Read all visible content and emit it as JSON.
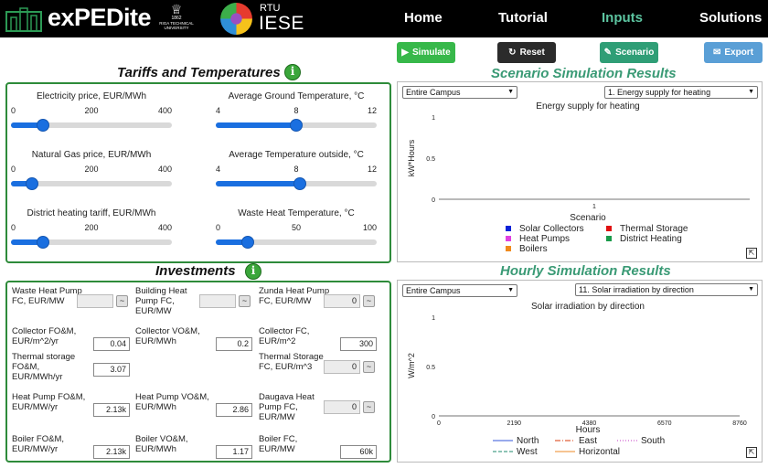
{
  "header": {
    "logo_text": "exPEDite",
    "rtu_logo_text": "RIGA TECHNICAL UNIVERSITY",
    "rtu_year": "1862",
    "iese_rtu": "RTU",
    "iese_name": "IESE",
    "nav": [
      "Home",
      "Tutorial",
      "Inputs",
      "Solutions"
    ],
    "active_nav": "Inputs"
  },
  "actions": {
    "simulate": "Simulate",
    "reset": "Reset",
    "scenario": "Scenario",
    "export": "Export",
    "colors": {
      "simulate": "#37b84a",
      "reset": "#2b2b2b",
      "scenario": "#2f9e76",
      "export": "#5a9fd6"
    }
  },
  "tariffs": {
    "title": "Tariffs and Temperatures",
    "sliders": [
      {
        "label": "Electricity price, EUR/MWh",
        "ticks": [
          "0",
          "200",
          "400"
        ],
        "fraction": 0.2
      },
      {
        "label": "Average Ground Temperature, °C",
        "ticks": [
          "4",
          "8",
          "12"
        ],
        "fraction": 0.5
      },
      {
        "label": "Natural Gas price, EUR/MWh",
        "ticks": [
          "0",
          "200",
          "400"
        ],
        "fraction": 0.13
      },
      {
        "label": "Average Temperature outside, °C",
        "ticks": [
          "4",
          "8",
          "12"
        ],
        "fraction": 0.52
      },
      {
        "label": "District heating tariff, EUR/MWh",
        "ticks": [
          "0",
          "200",
          "400"
        ],
        "fraction": 0.2
      },
      {
        "label": "Waste Heat Temperature, °C",
        "ticks": [
          "0",
          "50",
          "100"
        ],
        "fraction": 0.2
      }
    ]
  },
  "investments": {
    "title": "Investments",
    "fields": [
      {
        "label": "Waste Heat Pump FC, EUR/MW",
        "value": "",
        "disabled": true,
        "stepper": true
      },
      {
        "label": "Building Heat Pump FC, EUR/MW",
        "value": "",
        "disabled": true,
        "stepper": true
      },
      {
        "label": "Zunda Heat Pump FC, EUR/MW",
        "value": "0",
        "disabled": true,
        "stepper": true
      },
      {
        "label": "Collector FO&M, EUR/m^2/yr",
        "value": "0.04",
        "disabled": false,
        "stepper": false
      },
      {
        "label": "Collector VO&M, EUR/MWh",
        "value": "0.2",
        "disabled": false,
        "stepper": false
      },
      {
        "label": "Collector FC, EUR/m^2",
        "value": "300",
        "disabled": false,
        "stepper": false
      },
      {
        "label": "Thermal storage FO&M, EUR/MWh/yr",
        "value": "3.07",
        "disabled": false,
        "stepper": false
      },
      {
        "label": "Thermal Storage FC, EUR/m^3",
        "value": "0",
        "disabled": true,
        "stepper": true
      },
      {
        "label": "Heat Pump FO&M, EUR/MW/yr",
        "value": "2.13k",
        "disabled": false,
        "stepper": false
      },
      {
        "label": "Heat Pump VO&M, EUR/MWh",
        "value": "2.86",
        "disabled": false,
        "stepper": false
      },
      {
        "label": "Daugava Heat Pump FC, EUR/MW",
        "value": "0",
        "disabled": true,
        "stepper": true
      },
      {
        "label": "Boiler FO&M, EUR/MW/yr",
        "value": "2.13k",
        "disabled": false,
        "stepper": false
      },
      {
        "label": "Boiler VO&M, EUR/MWh",
        "value": "1.17",
        "disabled": false,
        "stepper": false
      },
      {
        "label": "Boiler FC, EUR/MW",
        "value": "60k",
        "disabled": false,
        "stepper": false
      }
    ]
  },
  "scenario_results": {
    "title": "Scenario Simulation Results",
    "campus_select": "Entire Campus",
    "metric_select": "1. Energy supply for heating"
  },
  "hourly_results": {
    "title": "Hourly Simulation Results",
    "campus_select": "Entire Campus",
    "metric_select": "11. Solar irradiation by direction"
  },
  "chart_data": [
    {
      "type": "bar",
      "title": "Energy supply for heating",
      "xlabel": "Scenario",
      "ylabel": "kW*Hours",
      "categories": [
        "1"
      ],
      "yticks": [
        "0",
        "0.5",
        "1"
      ],
      "ylim": [
        0,
        1
      ],
      "series": [
        {
          "name": "Solar Collectors",
          "color": "#0b22d8",
          "values": [
            0
          ]
        },
        {
          "name": "Thermal Storage",
          "color": "#e01010",
          "values": [
            0
          ]
        },
        {
          "name": "Heat Pumps",
          "color": "#e040e0",
          "values": [
            0
          ]
        },
        {
          "name": "District Heating",
          "color": "#1a9a4a",
          "values": [
            0
          ]
        },
        {
          "name": "Boilers",
          "color": "#f08a1c",
          "values": [
            0
          ]
        }
      ]
    },
    {
      "type": "line",
      "title": "Solar irradiation by direction",
      "xlabel": "Hours",
      "ylabel": "W/m^2",
      "xticks": [
        "0",
        "2190",
        "4380",
        "6570",
        "8760"
      ],
      "yticks": [
        "0",
        "0.5",
        "1"
      ],
      "xlim": [
        0,
        8760
      ],
      "ylim": [
        0,
        1
      ],
      "series": [
        {
          "name": "North",
          "color": "#5a78e0",
          "dash": "solid"
        },
        {
          "name": "East",
          "color": "#e0603a",
          "dash": "dashdot"
        },
        {
          "name": "South",
          "color": "#d060d0",
          "dash": "dot"
        },
        {
          "name": "West",
          "color": "#4aa08a",
          "dash": "dash"
        },
        {
          "name": "Horizontal",
          "color": "#f0a050",
          "dash": "solid"
        }
      ]
    }
  ]
}
